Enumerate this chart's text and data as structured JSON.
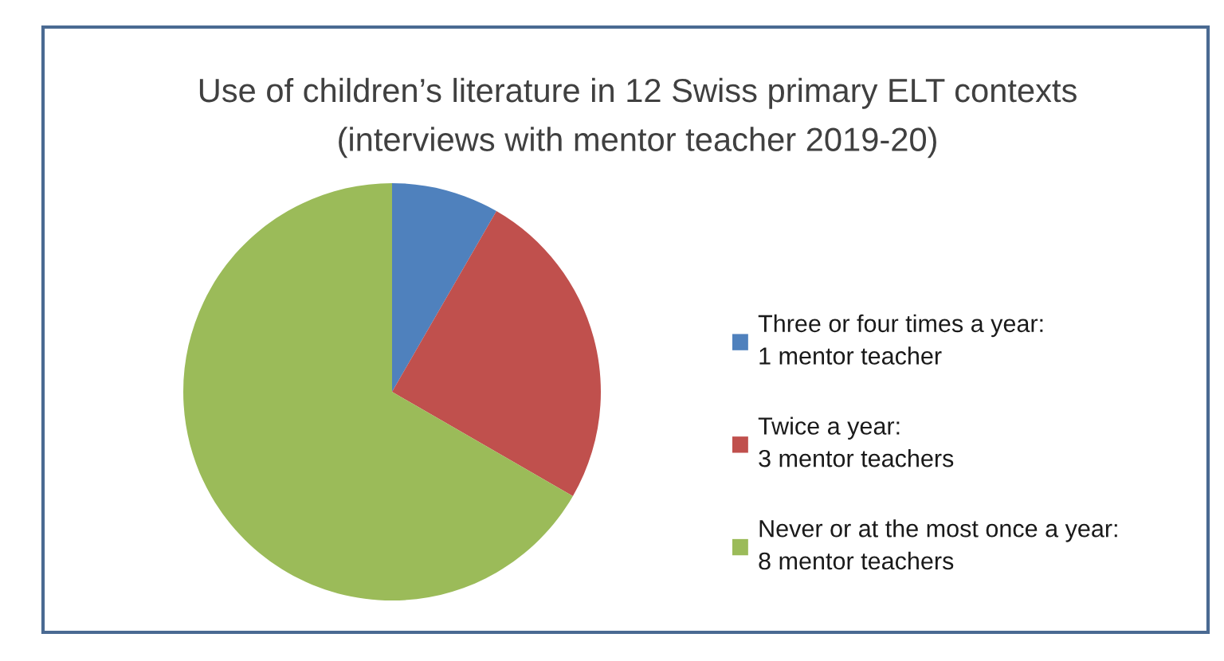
{
  "chart_data": {
    "type": "pie",
    "title": "Use of children’s literature in 12 Swiss primary ELT contexts\n(interviews with mentor teacher 2019-20)",
    "categories": [
      "Three or four times a year:\n1 mentor teacher",
      "Twice a year:\n3 mentor teachers",
      "Never or at the most once a year:\n8 mentor teachers"
    ],
    "values": [
      1,
      3,
      8
    ],
    "colors": [
      "#4f81bd",
      "#c0504d",
      "#9bbb59"
    ],
    "legend": "right"
  }
}
